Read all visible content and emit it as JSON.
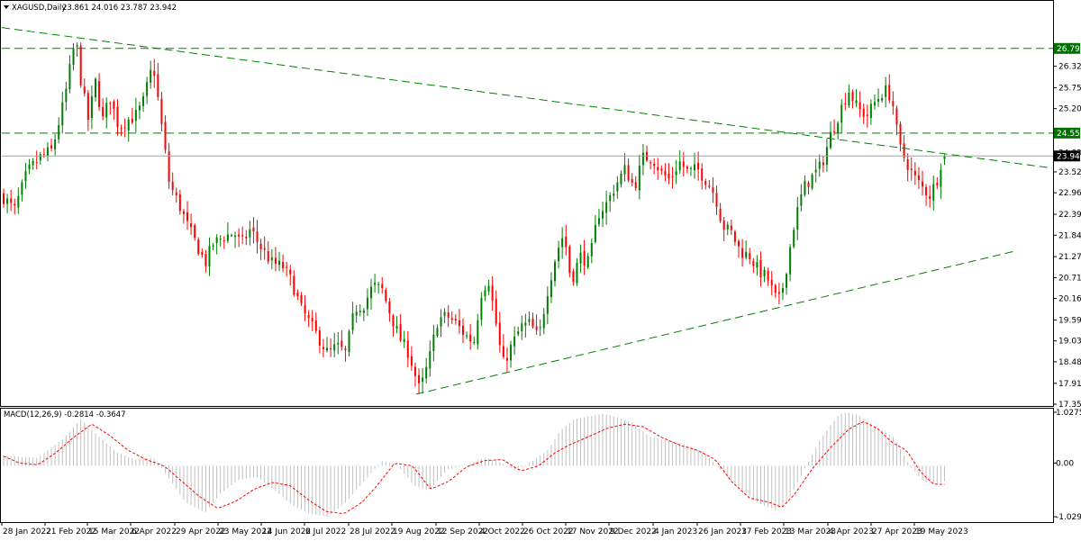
{
  "header": {
    "symbol": "XAGUSD,Daily",
    "ohlc": "23.861 24.016 23.787 23.942"
  },
  "macd_header": {
    "label": "MACD(12,26,9) -0.2814 -0.3647"
  },
  "colors": {
    "bull": "#008000",
    "bear": "#ff0000",
    "trendline": "#008000",
    "hist": "#c0c0c0",
    "signal": "#ff0000",
    "price_line": "#a0a0a0",
    "level_bg": "#007000",
    "current_bg": "#000000",
    "border": "#000000"
  },
  "chart_data": [
    {
      "type": "candlestick",
      "title": "XAGUSD,Daily",
      "ohlc_last": [
        23.861,
        24.016,
        23.787,
        23.942
      ],
      "ylim": [
        17.355,
        27.7
      ],
      "y_ticks": [
        "26.325",
        "25.755",
        "25.200",
        "24.030",
        "23.520",
        "22.965",
        "22.395",
        "21.840",
        "21.270",
        "20.715",
        "20.160",
        "19.590",
        "19.035",
        "18.480",
        "17.910",
        "17.355"
      ],
      "x_ticks": [
        "28 Jan 2022",
        "21 Feb 2022",
        "15 Mar 2022",
        "6 Apr 2022",
        "29 Apr 2022",
        "23 May 2022",
        "14 Jun 2022",
        "6 Jul 2022",
        "28 Jul 2022",
        "19 Aug 2022",
        "12 Sep 2022",
        "4 Oct 2022",
        "26 Oct 2022",
        "17 Nov 2022",
        "9 Dec 2022",
        "4 Jan 2023",
        "26 Jan 2023",
        "17 Feb 2023",
        "13 Mar 2023",
        "4 Apr 2023",
        "27 Apr 2023",
        "19 May 2023"
      ],
      "levels": [
        {
          "label": "26.797",
          "value": 26.797
        },
        {
          "label": "24.550",
          "value": 24.55
        }
      ],
      "current": {
        "label": "23.942",
        "value": 23.942
      },
      "trendlines": [
        {
          "name": "resistance",
          "from": {
            "date": "28 Jan 2022",
            "value": 27.35
          },
          "to": {
            "date": "after 19 May 2023",
            "value": 23.65
          }
        },
        {
          "name": "support",
          "from": {
            "date": "24 Aug 2022",
            "value": 17.62
          },
          "to": {
            "date": "after 19 May 2023",
            "value": 21.42
          }
        }
      ],
      "close_path": [
        [
          0,
          22.9
        ],
        [
          14,
          22.5
        ],
        [
          28,
          23.5
        ],
        [
          42,
          23.9
        ],
        [
          56,
          24.1
        ],
        [
          64,
          24.9
        ],
        [
          70,
          25.5
        ],
        [
          82,
          27.1
        ],
        [
          88,
          25.9
        ],
        [
          96,
          24.9
        ],
        [
          104,
          25.9
        ],
        [
          112,
          24.9
        ],
        [
          120,
          25.5
        ],
        [
          130,
          24.7
        ],
        [
          140,
          24.9
        ],
        [
          148,
          25.0
        ],
        [
          156,
          25.3
        ],
        [
          168,
          26.4
        ],
        [
          176,
          25.0
        ],
        [
          186,
          23.2
        ],
        [
          196,
          22.7
        ],
        [
          206,
          22.1
        ],
        [
          216,
          21.6
        ],
        [
          226,
          21.1
        ],
        [
          234,
          21.6
        ],
        [
          246,
          21.8
        ],
        [
          258,
          21.9
        ],
        [
          266,
          21.6
        ],
        [
          276,
          22.0
        ],
        [
          288,
          21.5
        ],
        [
          300,
          21.1
        ],
        [
          312,
          21.0
        ],
        [
          322,
          20.6
        ],
        [
          332,
          19.9
        ],
        [
          342,
          19.5
        ],
        [
          352,
          19.1
        ],
        [
          362,
          18.7
        ],
        [
          372,
          18.9
        ],
        [
          382,
          18.7
        ],
        [
          392,
          19.9
        ],
        [
          402,
          20.0
        ],
        [
          412,
          20.5
        ],
        [
          422,
          20.4
        ],
        [
          432,
          19.7
        ],
        [
          442,
          19.1
        ],
        [
          452,
          18.7
        ],
        [
          464,
          17.7
        ],
        [
          474,
          18.5
        ],
        [
          484,
          19.6
        ],
        [
          494,
          19.7
        ],
        [
          504,
          19.5
        ],
        [
          514,
          19.2
        ],
        [
          524,
          19.0
        ],
        [
          532,
          20.3
        ],
        [
          540,
          20.7
        ],
        [
          548,
          19.6
        ],
        [
          556,
          18.4
        ],
        [
          566,
          18.9
        ],
        [
          576,
          19.4
        ],
        [
          586,
          19.5
        ],
        [
          596,
          19.1
        ],
        [
          606,
          20.4
        ],
        [
          616,
          21.4
        ],
        [
          624,
          21.9
        ],
        [
          632,
          20.6
        ],
        [
          642,
          21.3
        ],
        [
          652,
          21.1
        ],
        [
          662,
          22.4
        ],
        [
          672,
          22.7
        ],
        [
          682,
          23.2
        ],
        [
          692,
          23.6
        ],
        [
          702,
          23.1
        ],
        [
          712,
          23.9
        ],
        [
          722,
          23.9
        ],
        [
          732,
          23.5
        ],
        [
          742,
          23.3
        ],
        [
          752,
          23.8
        ],
        [
          762,
          23.5
        ],
        [
          772,
          23.6
        ],
        [
          782,
          23.3
        ],
        [
          792,
          22.9
        ],
        [
          800,
          22.1
        ],
        [
          810,
          21.9
        ],
        [
          820,
          21.4
        ],
        [
          830,
          21.3
        ],
        [
          840,
          20.9
        ],
        [
          850,
          20.7
        ],
        [
          858,
          20.2
        ],
        [
          864,
          20.1
        ],
        [
          872,
          21.1
        ],
        [
          880,
          22.2
        ],
        [
          890,
          23.1
        ],
        [
          900,
          23.4
        ],
        [
          910,
          23.7
        ],
        [
          920,
          24.5
        ],
        [
          930,
          25.1
        ],
        [
          940,
          25.7
        ],
        [
          950,
          25.2
        ],
        [
          960,
          25.0
        ],
        [
          970,
          25.4
        ],
        [
          980,
          25.7
        ],
        [
          988,
          25.5
        ],
        [
          996,
          24.2
        ],
        [
          1004,
          23.8
        ],
        [
          1012,
          23.4
        ],
        [
          1022,
          23.1
        ],
        [
          1030,
          22.9
        ],
        [
          1038,
          23.3
        ],
        [
          1044,
          23.9
        ]
      ]
    },
    {
      "type": "macd",
      "title": "MACD(12,26,9)",
      "values_last": {
        "macd": -0.2814,
        "signal": -0.3647
      },
      "ylim": [
        -1.0294,
        1.0275
      ],
      "y_ticks": [
        "1.0275",
        "0.00",
        "-1.0294"
      ],
      "hist_path": [
        [
          0,
          0.2
        ],
        [
          40,
          0.15
        ],
        [
          70,
          0.55
        ],
        [
          88,
          0.9
        ],
        [
          104,
          0.62
        ],
        [
          128,
          0.25
        ],
        [
          148,
          0.12
        ],
        [
          168,
          0.16
        ],
        [
          184,
          -0.2
        ],
        [
          204,
          -0.7
        ],
        [
          226,
          -0.9
        ],
        [
          242,
          -0.55
        ],
        [
          262,
          -0.28
        ],
        [
          282,
          -0.2
        ],
        [
          302,
          -0.45
        ],
        [
          322,
          -0.75
        ],
        [
          342,
          -0.92
        ],
        [
          362,
          -0.98
        ],
        [
          382,
          -0.7
        ],
        [
          402,
          -0.3
        ],
        [
          422,
          0.1
        ],
        [
          438,
          0.03
        ],
        [
          458,
          -0.38
        ],
        [
          474,
          -0.48
        ],
        [
          494,
          -0.08
        ],
        [
          514,
          0.0
        ],
        [
          534,
          0.15
        ],
        [
          552,
          0.08
        ],
        [
          570,
          -0.1
        ],
        [
          590,
          0.1
        ],
        [
          606,
          0.3
        ],
        [
          620,
          0.68
        ],
        [
          636,
          0.9
        ],
        [
          652,
          0.95
        ],
        [
          668,
          1.0
        ],
        [
          684,
          0.93
        ],
        [
          700,
          0.82
        ],
        [
          720,
          0.55
        ],
        [
          740,
          0.48
        ],
        [
          760,
          0.4
        ],
        [
          780,
          0.25
        ],
        [
          800,
          -0.12
        ],
        [
          820,
          -0.45
        ],
        [
          840,
          -0.72
        ],
        [
          860,
          -0.85
        ],
        [
          872,
          -0.7
        ],
        [
          890,
          -0.1
        ],
        [
          910,
          0.55
        ],
        [
          930,
          1.0
        ],
        [
          940,
          1.02
        ],
        [
          950,
          0.98
        ],
        [
          970,
          0.75
        ],
        [
          990,
          0.55
        ],
        [
          1008,
          0.0
        ],
        [
          1024,
          -0.32
        ],
        [
          1040,
          -0.35
        ],
        [
          1046,
          -0.3
        ]
      ],
      "signal_path": [
        [
          0,
          0.2
        ],
        [
          20,
          0.05
        ],
        [
          40,
          0.02
        ],
        [
          60,
          0.25
        ],
        [
          80,
          0.55
        ],
        [
          100,
          0.8
        ],
        [
          120,
          0.58
        ],
        [
          140,
          0.3
        ],
        [
          160,
          0.12
        ],
        [
          180,
          0.0
        ],
        [
          200,
          -0.3
        ],
        [
          220,
          -0.6
        ],
        [
          240,
          -0.82
        ],
        [
          260,
          -0.68
        ],
        [
          280,
          -0.45
        ],
        [
          300,
          -0.32
        ],
        [
          320,
          -0.38
        ],
        [
          340,
          -0.65
        ],
        [
          360,
          -0.88
        ],
        [
          380,
          -0.92
        ],
        [
          400,
          -0.7
        ],
        [
          418,
          -0.35
        ],
        [
          436,
          0.05
        ],
        [
          456,
          0.0
        ],
        [
          476,
          -0.45
        ],
        [
          496,
          -0.3
        ],
        [
          516,
          -0.02
        ],
        [
          536,
          0.1
        ],
        [
          556,
          0.12
        ],
        [
          576,
          -0.1
        ],
        [
          596,
          0.0
        ],
        [
          614,
          0.25
        ],
        [
          630,
          0.4
        ],
        [
          650,
          0.55
        ],
        [
          672,
          0.72
        ],
        [
          692,
          0.8
        ],
        [
          712,
          0.75
        ],
        [
          732,
          0.55
        ],
        [
          752,
          0.4
        ],
        [
          772,
          0.3
        ],
        [
          792,
          0.12
        ],
        [
          810,
          -0.3
        ],
        [
          830,
          -0.62
        ],
        [
          852,
          -0.7
        ],
        [
          866,
          -0.8
        ],
        [
          880,
          -0.55
        ],
        [
          900,
          -0.05
        ],
        [
          920,
          0.35
        ],
        [
          940,
          0.7
        ],
        [
          956,
          0.85
        ],
        [
          972,
          0.72
        ],
        [
          988,
          0.45
        ],
        [
          1004,
          0.3
        ],
        [
          1020,
          -0.12
        ],
        [
          1034,
          -0.35
        ],
        [
          1046,
          -0.36
        ]
      ]
    }
  ]
}
